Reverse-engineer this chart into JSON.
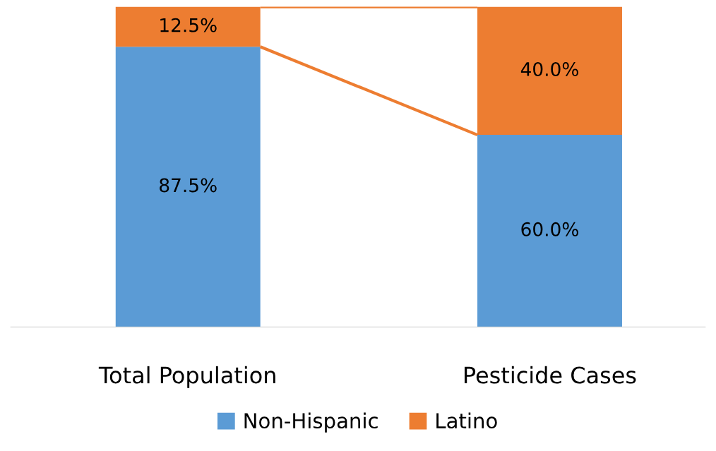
{
  "chart_data": {
    "type": "bar",
    "stacked": true,
    "categories": [
      "Total Population",
      "Pesticide Cases"
    ],
    "series": [
      {
        "name": "Non-Hispanic",
        "color": "#5b9bd5",
        "values": [
          87.5,
          60.0
        ],
        "value_labels": [
          "87.5%",
          "60.0%"
        ]
      },
      {
        "name": "Latino",
        "color": "#ed7d31",
        "values": [
          12.5,
          40.0
        ],
        "value_labels": [
          "12.5%",
          "40.0%"
        ]
      }
    ],
    "legend": "bottom",
    "grid": false
  }
}
